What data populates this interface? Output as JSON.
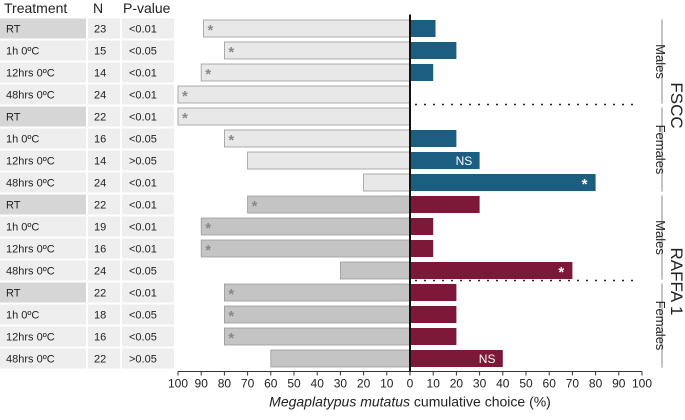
{
  "chart_data": {
    "type": "bar",
    "orientation": "horizontal-diverging",
    "table_headers": {
      "treatment": "Treatment",
      "n": "N",
      "p": "P-value"
    },
    "xlabel_italic": "Megaplatypus mutatus",
    "xlabel_rest": " cumulative choice (%)",
    "xticks": [
      "100",
      "90",
      "80",
      "70",
      "60",
      "50",
      "40",
      "30",
      "20",
      "10",
      "0",
      "10",
      "20",
      "30",
      "40",
      "50",
      "60",
      "70",
      "80",
      "90",
      "100"
    ],
    "xlim": [
      -100,
      100
    ],
    "rows": [
      {
        "treatment": "RT",
        "n": "23",
        "p": "<0.01",
        "left": 89,
        "right": 11,
        "left_ann": "*",
        "right_ann": "",
        "pop": "FSCC",
        "sex": "Males"
      },
      {
        "treatment": "1h 0ºC",
        "n": "15",
        "p": "<0.05",
        "left": 80,
        "right": 20,
        "left_ann": "*",
        "right_ann": "",
        "pop": "FSCC",
        "sex": "Males"
      },
      {
        "treatment": "12hrs 0ºC",
        "n": "14",
        "p": "<0.01",
        "left": 90,
        "right": 10,
        "left_ann": "*",
        "right_ann": "",
        "pop": "FSCC",
        "sex": "Males"
      },
      {
        "treatment": "48hrs 0ºC",
        "n": "24",
        "p": "<0.01",
        "left": 100,
        "right": 0,
        "left_ann": "*",
        "right_ann": "",
        "pop": "FSCC",
        "sex": "Males"
      },
      {
        "treatment": "RT",
        "n": "22",
        "p": "<0.01",
        "left": 100,
        "right": 0,
        "left_ann": "*",
        "right_ann": "",
        "pop": "FSCC",
        "sex": "Females"
      },
      {
        "treatment": "1h 0ºC",
        "n": "16",
        "p": "<0.05",
        "left": 80,
        "right": 20,
        "left_ann": "*",
        "right_ann": "",
        "pop": "FSCC",
        "sex": "Females"
      },
      {
        "treatment": "12hrs 0ºC",
        "n": "14",
        "p": ">0.05",
        "left": 70,
        "right": 30,
        "left_ann": "",
        "right_ann": "NS",
        "pop": "FSCC",
        "sex": "Females"
      },
      {
        "treatment": "48hrs 0ºC",
        "n": "24",
        "p": "<0.01",
        "left": 20,
        "right": 80,
        "left_ann": "",
        "right_ann": "*",
        "pop": "FSCC",
        "sex": "Females"
      },
      {
        "treatment": "RT",
        "n": "22",
        "p": "<0.01",
        "left": 70,
        "right": 30,
        "left_ann": "*",
        "right_ann": "",
        "pop": "RAFFA 1",
        "sex": "Males"
      },
      {
        "treatment": "1h 0ºC",
        "n": "19",
        "p": "<0.01",
        "left": 90,
        "right": 10,
        "left_ann": "*",
        "right_ann": "",
        "pop": "RAFFA 1",
        "sex": "Males"
      },
      {
        "treatment": "12hrs 0ºC",
        "n": "16",
        "p": "<0.01",
        "left": 90,
        "right": 10,
        "left_ann": "*",
        "right_ann": "",
        "pop": "RAFFA 1",
        "sex": "Males"
      },
      {
        "treatment": "48hrs 0ºC",
        "n": "24",
        "p": "<0.05",
        "left": 30,
        "right": 70,
        "left_ann": "",
        "right_ann": "*",
        "pop": "RAFFA 1",
        "sex": "Males"
      },
      {
        "treatment": "RT",
        "n": "22",
        "p": "<0.01",
        "left": 80,
        "right": 20,
        "left_ann": "*",
        "right_ann": "",
        "pop": "RAFFA 1",
        "sex": "Females"
      },
      {
        "treatment": "1h 0ºC",
        "n": "18",
        "p": "<0.05",
        "left": 80,
        "right": 20,
        "left_ann": "*",
        "right_ann": "",
        "pop": "RAFFA 1",
        "sex": "Females"
      },
      {
        "treatment": "12hrs 0ºC",
        "n": "16",
        "p": "<0.05",
        "left": 80,
        "right": 20,
        "left_ann": "*",
        "right_ann": "",
        "pop": "RAFFA 1",
        "sex": "Females"
      },
      {
        "treatment": "48hrs 0ºC",
        "n": "22",
        "p": ">0.05",
        "left": 60,
        "right": 40,
        "left_ann": "",
        "right_ann": "NS",
        "pop": "RAFFA 1",
        "sex": "Females"
      }
    ],
    "groups": [
      {
        "label": "FSCC",
        "rows": [
          0,
          7
        ]
      },
      {
        "label": "RAFFA 1",
        "rows": [
          8,
          15
        ]
      }
    ],
    "subgroups": [
      {
        "label": "Males",
        "rows": [
          0,
          3
        ]
      },
      {
        "label": "Females",
        "rows": [
          4,
          7
        ]
      },
      {
        "label": "Males",
        "rows": [
          8,
          11
        ]
      },
      {
        "label": "Females",
        "rows": [
          12,
          15
        ]
      }
    ],
    "colors": {
      "fscc": "#1b5e82",
      "raffa": "#7d1838",
      "left_fscc": "#e8e8e8",
      "left_raffa": "#c4c4c4",
      "left_stroke": "#9a9a9a",
      "row_shade_dark": "#d6d6d6",
      "row_shade_light": "#eeeeee"
    }
  }
}
